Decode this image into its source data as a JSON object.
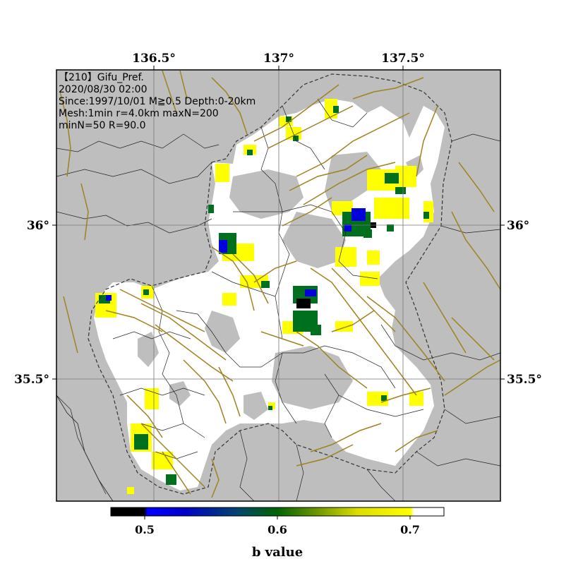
{
  "info_lines": [
    "【210】Gifu_Pref.",
    "2020/08/30 02:00",
    "Since:1997/10/01 M≧0.5 Depth:0-20km",
    "Mesh:1min r=4.0km maxN=200",
    "minN=50 R=90.0"
  ],
  "axes": {
    "lon_ticks": [
      "136.5°",
      "137°",
      "137.5°"
    ],
    "lat_ticks_left": [
      "36°",
      "35.5°"
    ],
    "lat_ticks_right": [
      "36°",
      "35.5°"
    ]
  },
  "colorbar": {
    "ticks": [
      "0.5",
      "0.6",
      "0.7"
    ],
    "title": "b value",
    "colors": [
      "#000000",
      "#0000ff",
      "#006400",
      "#ffff00",
      "#ffffff"
    ]
  },
  "colors": {
    "ocean_bg": "#bebebe",
    "fault": "#a0821e",
    "low_b": "#0000dd",
    "mid_b": "#006f1e",
    "high_b": "#ffff00"
  }
}
